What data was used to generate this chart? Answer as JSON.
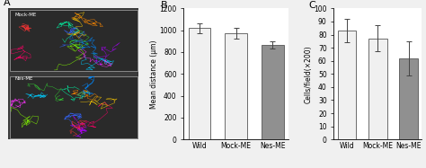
{
  "panel_B": {
    "categories": [
      "Wild",
      "Mock-ME",
      "Nes-ME"
    ],
    "values": [
      1020,
      975,
      865
    ],
    "errors": [
      45,
      50,
      35
    ],
    "bar_colors": [
      "#f0f0f0",
      "#f0f0f0",
      "#909090"
    ],
    "bar_edge_color": "#555555",
    "ylabel": "Mean distance (μm)",
    "ylim": [
      0,
      1200
    ],
    "yticks": [
      0,
      200,
      400,
      600,
      800,
      1000,
      1200
    ],
    "title": "B"
  },
  "panel_C": {
    "categories": [
      "Wild",
      "Mock-ME",
      "Nes-ME"
    ],
    "values": [
      83,
      77,
      62
    ],
    "errors": [
      9,
      10,
      13
    ],
    "bar_colors": [
      "#f0f0f0",
      "#f0f0f0",
      "#909090"
    ],
    "bar_edge_color": "#555555",
    "ylabel": "Cells/field(×200)",
    "ylim": [
      0,
      100
    ],
    "yticks": [
      0,
      10,
      20,
      30,
      40,
      50,
      60,
      70,
      80,
      90,
      100
    ],
    "title": "C"
  },
  "background_color": "#f0f0f0",
  "panel_A_label": "A",
  "panel_A_top_label": "Mock-ME",
  "panel_A_bottom_label": "Nes-ME",
  "panel_A_bg": "#3a3a3a",
  "figure_width": 4.74,
  "figure_height": 1.87,
  "dpi": 100
}
